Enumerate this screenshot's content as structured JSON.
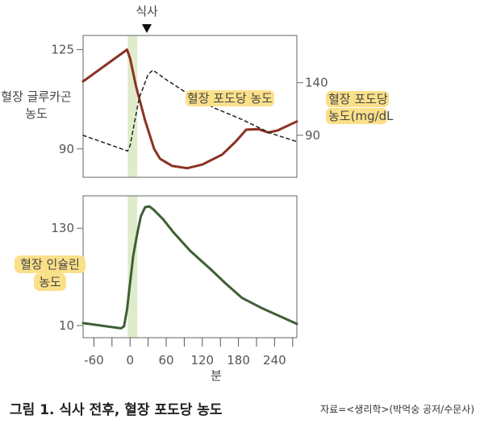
{
  "meal_label": "식사",
  "caption": {
    "title": "그림 1. 식사 전후, 혈장 포도당 농도",
    "source": "자료=<생리학>(박억숭 공저/수문사)"
  },
  "colors": {
    "glucagon": "#8b3222",
    "glucose": "#222222",
    "insulin": "#3f5f34",
    "meal_band": "#dfeccb",
    "highlight": "#fbe08a"
  },
  "chart_data": [
    {
      "type": "line",
      "title": "",
      "xlabel": "",
      "xlim": [
        -78,
        277
      ],
      "meal_band": [
        -4,
        12
      ],
      "left_axis": {
        "label_lines": [
          "혈장 글루카곤",
          "농도"
        ],
        "ticks": [
          125,
          90
        ],
        "tick_labels": [
          "125",
          "90"
        ],
        "ylim": [
          80,
          130
        ]
      },
      "right_axis": {
        "label_lines": [
          "혈장 포도당",
          "농도(mg/dL"
        ],
        "ticks": [
          140,
          90
        ],
        "tick_labels": [
          "140",
          "90"
        ],
        "ylim": [
          50,
          185
        ]
      },
      "annotation": "혈장 포도당 농도",
      "series": [
        {
          "name": "혈장 글루카곤 농도",
          "axis": "left",
          "style": "solid",
          "x": [
            -78,
            -5,
            0,
            10,
            25,
            40,
            50,
            70,
            95,
            120,
            153,
            175,
            193,
            213,
            230,
            245,
            277
          ],
          "y": [
            113.8,
            125,
            122,
            112,
            100,
            90,
            86.5,
            84,
            83.2,
            84.5,
            88,
            92.5,
            96.8,
            97,
            95.8,
            96.5,
            99.7
          ]
        },
        {
          "name": "혈장 포도당 농도",
          "axis": "right",
          "style": "dashed",
          "x": [
            -78,
            -4,
            0,
            15,
            30,
            38,
            60,
            100,
            140,
            186,
            233,
            277
          ],
          "y": [
            90,
            75,
            80,
            125,
            148,
            152,
            143,
            128,
            116,
            105,
            92,
            84
          ]
        }
      ]
    },
    {
      "type": "line",
      "xlabel": "분",
      "xlim": [
        -78,
        277
      ],
      "x_ticks": [
        -60,
        -30,
        0,
        30,
        60,
        90,
        120,
        150,
        180,
        210,
        240,
        270
      ],
      "x_tick_labels": [
        "-60",
        "0",
        "60",
        "120",
        "180",
        "240"
      ],
      "x_labeled_values": [
        -60,
        0,
        60,
        120,
        180,
        240
      ],
      "meal_band": [
        -4,
        12
      ],
      "left_axis": {
        "label_lines": [
          "혈장 인슐린",
          "농도"
        ],
        "ticks": [
          130,
          10
        ],
        "tick_labels": [
          "130",
          "10"
        ],
        "ylim": [
          -5,
          170
        ]
      },
      "series": [
        {
          "name": "혈장 인슐린 농도",
          "style": "solid",
          "x": [
            -78,
            -15,
            -10,
            -5,
            5,
            12,
            18,
            25,
            32,
            39,
            55,
            72,
            100,
            133,
            160,
            186,
            220,
            277
          ],
          "y": [
            13,
            6.5,
            9,
            30,
            95,
            124,
            145,
            156,
            157,
            153,
            141,
            125,
            102,
            80,
            61,
            44,
            31,
            12
          ]
        }
      ]
    }
  ]
}
